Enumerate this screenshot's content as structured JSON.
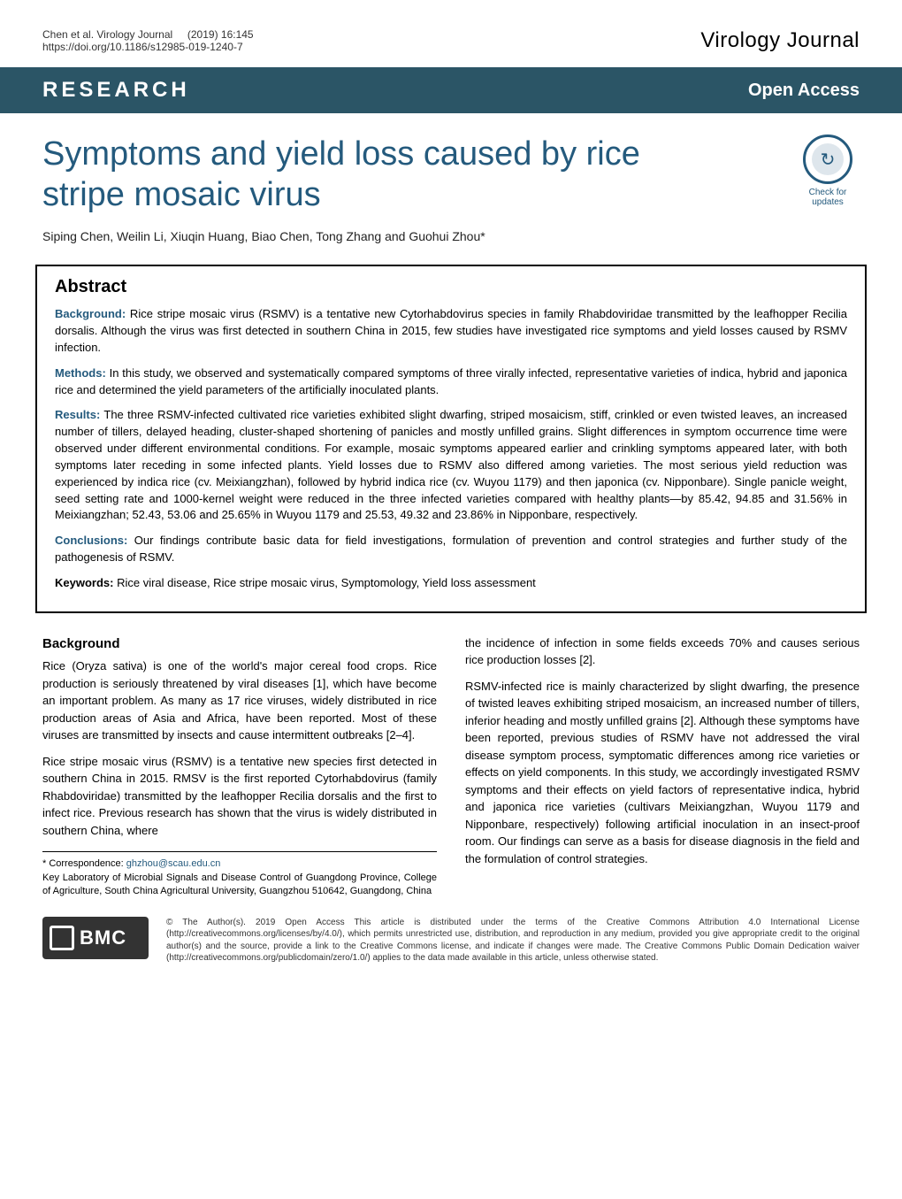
{
  "header": {
    "citation_authors": "Chen et al. Virology Journal",
    "citation_year_vol": "(2019) 16:145",
    "citation_doi": "https://doi.org/10.1186/s12985-019-1240-7",
    "journal_name": "Virology Journal"
  },
  "banner": {
    "left": "RESEARCH",
    "right": "Open Access"
  },
  "title": "Symptoms and yield loss caused by rice stripe mosaic virus",
  "check_badge": {
    "label1": "Check for",
    "label2": "updates"
  },
  "authors": "Siping Chen, Weilin Li, Xiuqin Huang, Biao Chen, Tong Zhang and Guohui Zhou*",
  "abstract": {
    "heading": "Abstract",
    "background_label": "Background:",
    "background_text": " Rice stripe mosaic virus (RSMV) is a tentative new Cytorhabdovirus species in family Rhabdoviridae transmitted by the leafhopper Recilia dorsalis. Although the virus was first detected in southern China in 2015, few studies have investigated rice symptoms and yield losses caused by RSMV infection.",
    "methods_label": "Methods:",
    "methods_text": " In this study, we observed and systematically compared symptoms of three virally infected, representative varieties of indica, hybrid and japonica rice and determined the yield parameters of the artificially inoculated plants.",
    "results_label": "Results:",
    "results_text": " The three RSMV-infected cultivated rice varieties exhibited slight dwarfing, striped mosaicism, stiff, crinkled or even twisted leaves, an increased number of tillers, delayed heading, cluster-shaped shortening of panicles and mostly unfilled grains. Slight differences in symptom occurrence time were observed under different environmental conditions. For example, mosaic symptoms appeared earlier and crinkling symptoms appeared later, with both symptoms later receding in some infected plants. Yield losses due to RSMV also differed among varieties. The most serious yield reduction was experienced by indica rice (cv. Meixiangzhan), followed by hybrid indica rice (cv. Wuyou 1179) and then japonica (cv. Nipponbare). Single panicle weight, seed setting rate and 1000-kernel weight were reduced in the three infected varieties compared with healthy plants—by 85.42, 94.85 and 31.56% in Meixiangzhan; 52.43, 53.06 and 25.65% in Wuyou 1179 and 25.53, 49.32 and 23.86% in Nipponbare, respectively.",
    "conclusions_label": "Conclusions:",
    "conclusions_text": " Our findings contribute basic data for field investigations, formulation of prevention and control strategies and further study of the pathogenesis of RSMV.",
    "keywords_label": "Keywords:",
    "keywords_text": " Rice viral disease, Rice stripe mosaic virus, Symptomology, Yield loss assessment"
  },
  "body": {
    "background_heading": "Background",
    "p1": "Rice (Oryza sativa) is one of the world's major cereal food crops. Rice production is seriously threatened by viral diseases [1], which have become an important problem. As many as 17 rice viruses, widely distributed in rice production areas of Asia and Africa, have been reported. Most of these viruses are transmitted by insects and cause intermittent outbreaks [2–4].",
    "p2": "Rice stripe mosaic virus (RSMV) is a tentative new species first detected in southern China in 2015. RMSV is the first reported Cytorhabdovirus (family Rhabdoviridae) transmitted by the leafhopper Recilia dorsalis and the first to infect rice. Previous research has shown that the virus is widely distributed in southern China, where",
    "p3": "the incidence of infection in some fields exceeds 70% and causes serious rice production losses [2].",
    "p4": "RSMV-infected rice is mainly characterized by slight dwarfing, the presence of twisted leaves exhibiting striped mosaicism, an increased number of tillers, inferior heading and mostly unfilled grains [2]. Although these symptoms have been reported, previous studies of RSMV have not addressed the viral disease symptom process, symptomatic differences among rice varieties or effects on yield components. In this study, we accordingly investigated RSMV symptoms and their effects on yield factors of representative indica, hybrid and japonica rice varieties (cultivars Meixiangzhan, Wuyou 1179 and Nipponbare, respectively) following artificial inoculation in an insect-proof room. Our findings can serve as a basis for disease diagnosis in the field and the formulation of control strategies."
  },
  "correspondence": {
    "label": "* Correspondence: ",
    "email": "ghzhou@scau.edu.cn",
    "affil1": "Key Laboratory of Microbial Signals and Disease Control of Guangdong Province, College of Agriculture, South China Agricultural University, Guangzhou 510642, Guangdong, China"
  },
  "footer": {
    "bmc": "BMC",
    "license": "© The Author(s). 2019 Open Access This article is distributed under the terms of the Creative Commons Attribution 4.0 International License (http://creativecommons.org/licenses/by/4.0/), which permits unrestricted use, distribution, and reproduction in any medium, provided you give appropriate credit to the original author(s) and the source, provide a link to the Creative Commons license, and indicate if changes were made. The Creative Commons Public Domain Dedication waiver (http://creativecommons.org/publicdomain/zero/1.0/) applies to the data made available in this article, unless otherwise stated."
  },
  "colors": {
    "banner_bg": "#2b5566",
    "accent": "#245a7d",
    "text": "#000000",
    "border": "#000000"
  }
}
